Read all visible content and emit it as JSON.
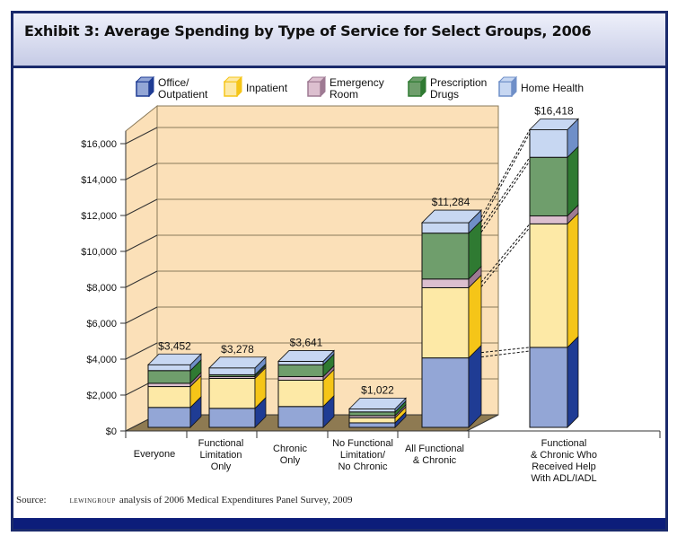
{
  "title": "Exhibit 3:  Average Spending by Type of Service for Select Groups, 2006",
  "source": {
    "prefix": "Source:",
    "logo": "LEWINGROUP",
    "text": "analysis of 2006 Medical Expenditures Panel Survey, 2009"
  },
  "chart_data": {
    "type": "bar",
    "stacked": true,
    "three_d": true,
    "title": "Exhibit 3:  Average Spending by Type of Service for Select Groups, 2006",
    "ylim": [
      0,
      16000
    ],
    "yticks": [
      "$0",
      "$2,000",
      "$4,000",
      "$6,000",
      "$8,000",
      "$10,000",
      "$12,000",
      "$14,000",
      "$16,000"
    ],
    "grid": true,
    "legend_position": "top",
    "categories": [
      [
        "Everyone"
      ],
      [
        "Functional",
        "Limitation",
        "Only"
      ],
      [
        "Chronic",
        "Only"
      ],
      [
        "No Functional",
        "Limitation/",
        "No Chronic"
      ],
      [
        "All Functional",
        "& Chronic"
      ],
      [
        "Functional",
        "& Chronic Who",
        "Received Help",
        "With ADL/IADL"
      ]
    ],
    "totals": [
      "$3,452",
      "$3,278",
      "$3,641",
      "$1,022",
      "$11,284",
      "$16,418"
    ],
    "series": [
      {
        "name": [
          "Office/",
          "Outpatient"
        ],
        "color": "#93a6d6",
        "dark": "#1f3c94",
        "values": [
          1100,
          1050,
          1150,
          250,
          3830,
          4410
        ]
      },
      {
        "name": [
          "Inpatient"
        ],
        "color": "#fde9a6",
        "dark": "#f5c518",
        "values": [
          1150,
          1650,
          1450,
          280,
          3870,
          6810
        ]
      },
      {
        "name": [
          "Emergency",
          "Room"
        ],
        "color": "#dcbfcf",
        "dark": "#9e7a93",
        "values": [
          180,
          100,
          200,
          120,
          480,
          440
        ]
      },
      {
        "name": [
          "Prescription",
          "Drugs"
        ],
        "color": "#6f9e6c",
        "dark": "#2f7a32",
        "values": [
          700,
          100,
          650,
          200,
          2530,
          3230
        ]
      },
      {
        "name": [
          "Home Health"
        ],
        "color": "#c7d7f2",
        "dark": "#6f8fc8",
        "values": [
          322,
          378,
          191,
          172,
          574,
          1528
        ]
      }
    ],
    "wall_color": "#fbe0b8",
    "floor_color": "#8e7a52"
  }
}
